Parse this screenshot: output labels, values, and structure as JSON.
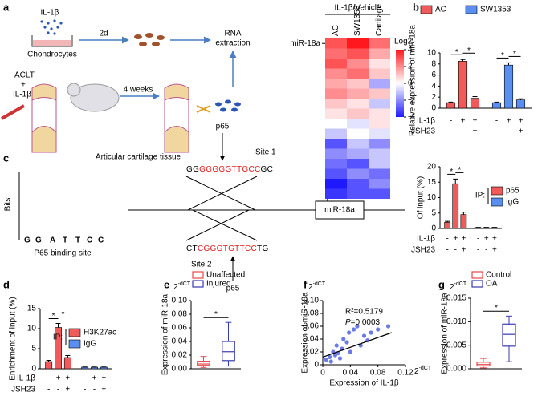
{
  "panel_labels": [
    "a",
    "b",
    "c",
    "d",
    "e",
    "f",
    "g"
  ],
  "diagram_a": {
    "stimulus": "IL-1β",
    "cells": "Chondrocytes",
    "time_cells": "2d",
    "rna": [
      "RNA",
      "extraction"
    ],
    "model": [
      "ACLT",
      "+",
      "IL-1β"
    ],
    "time_model": "4 weeks",
    "tissue": "Articular cartilage tissue"
  },
  "heatmap": {
    "title": "IL-1β/Vehicle",
    "columns": [
      "AC",
      "SW1353",
      "Cartilage"
    ],
    "row_label": "miR-18a",
    "legend_title": "Log2",
    "range": [
      -4,
      4
    ],
    "ticks": [
      4,
      2,
      0,
      -2,
      -4
    ],
    "values": [
      [
        3,
        4,
        2.5
      ],
      [
        2.5,
        3,
        1.5
      ],
      [
        3,
        2,
        0.5
      ],
      [
        2,
        2.5,
        1
      ],
      [
        1.5,
        1,
        -1.5
      ],
      [
        2,
        1.5,
        1
      ],
      [
        1,
        0.5,
        -1
      ],
      [
        0.5,
        1,
        0.5
      ],
      [
        0,
        -0.5,
        0.5
      ],
      [
        -1,
        0,
        -0.5
      ],
      [
        -3,
        -1,
        -2
      ],
      [
        -2,
        -1.5,
        -1
      ],
      [
        -2.5,
        -3,
        -1
      ],
      [
        -3,
        -2,
        -2.5
      ],
      [
        -4,
        -3,
        -2
      ],
      [
        -3.5,
        -3,
        -3
      ]
    ]
  },
  "diagram_c": {
    "logo_axis": "Bits",
    "logo": [
      "G",
      "G",
      "A",
      "T",
      "T",
      "C",
      "C"
    ],
    "logo_caption": "P65 binding site",
    "factor_top": "p65",
    "site1": "Site 1",
    "seq1": [
      "GG",
      "GGGGGTTGCC",
      "GC"
    ],
    "gene": "miR-18a",
    "seq2": [
      "CT",
      "CGGGTGTTCC",
      "TG"
    ],
    "site2": "Site 2",
    "factor_bottom": "p65"
  },
  "chart_data": [
    {
      "type": "bar",
      "y_label": "Relative expression of miR-18a",
      "ylim": [
        0,
        10
      ],
      "yticks": [
        0,
        2,
        4,
        6,
        8,
        10
      ],
      "series": [
        {
          "name": "AC",
          "color": "#f15a5a",
          "values": [
            1,
            8.5,
            1.8
          ],
          "errors": [
            0.1,
            0.3,
            0.3
          ]
        },
        {
          "name": "SW1353",
          "color": "#5a8ef0",
          "values": [
            1,
            7.8,
            1.5
          ],
          "errors": [
            0.1,
            0.4,
            0.2
          ]
        }
      ],
      "treatments": [
        {
          "name": "IL-1β",
          "signs": [
            "-",
            "+",
            "+",
            "-",
            "+",
            "+"
          ]
        },
        {
          "name": "JSH23",
          "signs": [
            "-",
            "-",
            "+",
            "-",
            "-",
            "+"
          ]
        }
      ],
      "significance": [
        "*",
        "*",
        "*",
        "*"
      ]
    },
    {
      "type": "bar",
      "y_label": "Of input (%)",
      "ylim": [
        0,
        20
      ],
      "yticks": [
        0,
        5,
        10,
        15,
        20
      ],
      "legend_title": "IP:",
      "series": [
        {
          "name": "p65",
          "color": "#f15a5a",
          "values": [
            2,
            14.5,
            4.5
          ],
          "errors": [
            0.3,
            1.5,
            0.8
          ]
        },
        {
          "name": "IgG",
          "color": "#5a8ef0",
          "values": [
            0.3,
            0.3,
            0.3
          ],
          "errors": [
            0.05,
            0.05,
            0.05
          ]
        }
      ],
      "treatments": [
        {
          "name": "IL-1β",
          "signs": [
            "-",
            "+",
            "+",
            "-",
            "+",
            "+"
          ]
        },
        {
          "name": "JSH23",
          "signs": [
            "-",
            "-",
            "+",
            "-",
            "-",
            "+"
          ]
        }
      ],
      "significance": [
        "*",
        "*"
      ]
    },
    {
      "type": "bar",
      "y_label": "Enrichment of input (%)",
      "ylim": [
        0,
        15
      ],
      "yticks": [
        0,
        5,
        10,
        15
      ],
      "legend_title": "IP:",
      "series": [
        {
          "name": "H3K27ac",
          "color": "#f15a5a",
          "values": [
            1.8,
            10.3,
            2.8
          ],
          "errors": [
            0.3,
            1,
            0.5
          ]
        },
        {
          "name": "IgG",
          "color": "#5a8ef0",
          "values": [
            0.4,
            0.4,
            0.4
          ],
          "errors": [
            0.05,
            0.05,
            0.05
          ]
        }
      ],
      "treatments": [
        {
          "name": "IL-1β",
          "signs": [
            "-",
            "+",
            "+",
            "-",
            "+",
            "+"
          ]
        },
        {
          "name": "JSH23",
          "signs": [
            "-",
            "-",
            "+",
            "-",
            "-",
            "+"
          ]
        }
      ],
      "significance": [
        "*",
        "*"
      ]
    },
    {
      "type": "box",
      "y_label": "Expression of miR-18a",
      "y_unit": [
        "2",
        "-dCT"
      ],
      "ylim": [
        0,
        0.1
      ],
      "yticks": [
        {
          "value": 0,
          "label": "0.00"
        },
        0.02,
        0.04,
        0.06,
        0.08,
        {
          "value": 0.1,
          "label": "0.10"
        }
      ],
      "series": [
        {
          "name": "Unaffected",
          "color": "#e8474a",
          "min": 0.002,
          "q1": 0.005,
          "median": 0.007,
          "q3": 0.011,
          "max": 0.018
        },
        {
          "name": "Injured",
          "color": "#3a3ab0",
          "min": 0.004,
          "q1": 0.012,
          "median": 0.025,
          "q3": 0.04,
          "max": 0.068
        }
      ],
      "significance": [
        "*"
      ]
    },
    {
      "type": "scatter",
      "x_label": "Expression of IL-1β",
      "y_label": "Expression of miR-18a",
      "y_unit": [
        "2",
        "-dCT"
      ],
      "x_unit": [
        "2",
        "-dCT"
      ],
      "stat_r2": "R²=0.5179",
      "stat_p": [
        "P",
        "=0.0003"
      ],
      "color": "#6a7ae6",
      "xlim": [
        0,
        0.12
      ],
      "xticks": [
        0,
        0.04,
        0.08,
        0.12
      ],
      "ylim": [
        0,
        0.1
      ],
      "yticks": [
        0,
        0.02,
        0.04,
        0.06,
        0.08,
        {
          "value": 0.1,
          "label": "0.10"
        }
      ],
      "x": [
        0.005,
        0.01,
        0.012,
        0.015,
        0.018,
        0.02,
        0.022,
        0.025,
        0.028,
        0.03,
        0.035,
        0.038,
        0.04,
        0.045,
        0.05,
        0.055,
        0.06,
        0.065,
        0.07,
        0.08,
        0.095
      ],
      "y": [
        0.008,
        0.012,
        0.005,
        0.02,
        0.015,
        0.03,
        0.018,
        0.01,
        0.025,
        0.04,
        0.035,
        0.05,
        0.02,
        0.055,
        0.06,
        0.03,
        0.045,
        0.038,
        0.05,
        0.055,
        0.06
      ],
      "fit": {
        "x": [
          0,
          0.1
        ],
        "y": [
          0.012,
          0.05
        ]
      }
    },
    {
      "type": "box",
      "y_label": "Expression of miR-18a",
      "y_unit": [
        "2",
        "-dCT"
      ],
      "ylim": [
        0,
        0.015
      ],
      "yticks": [
        {
          "value": 0,
          "label": "0.000"
        },
        0.005,
        {
          "value": 0.01,
          "label": "0.010"
        },
        0.015
      ],
      "series": [
        {
          "name": "Control",
          "color": "#e8474a",
          "min": 0.0002,
          "q1": 0.0006,
          "median": 0.0009,
          "q3": 0.0014,
          "max": 0.0022
        },
        {
          "name": "OA",
          "color": "#3a3ab0",
          "min": 0.0015,
          "q1": 0.0048,
          "median": 0.0073,
          "q3": 0.0095,
          "max": 0.0112
        }
      ],
      "significance": [
        "*"
      ]
    }
  ]
}
